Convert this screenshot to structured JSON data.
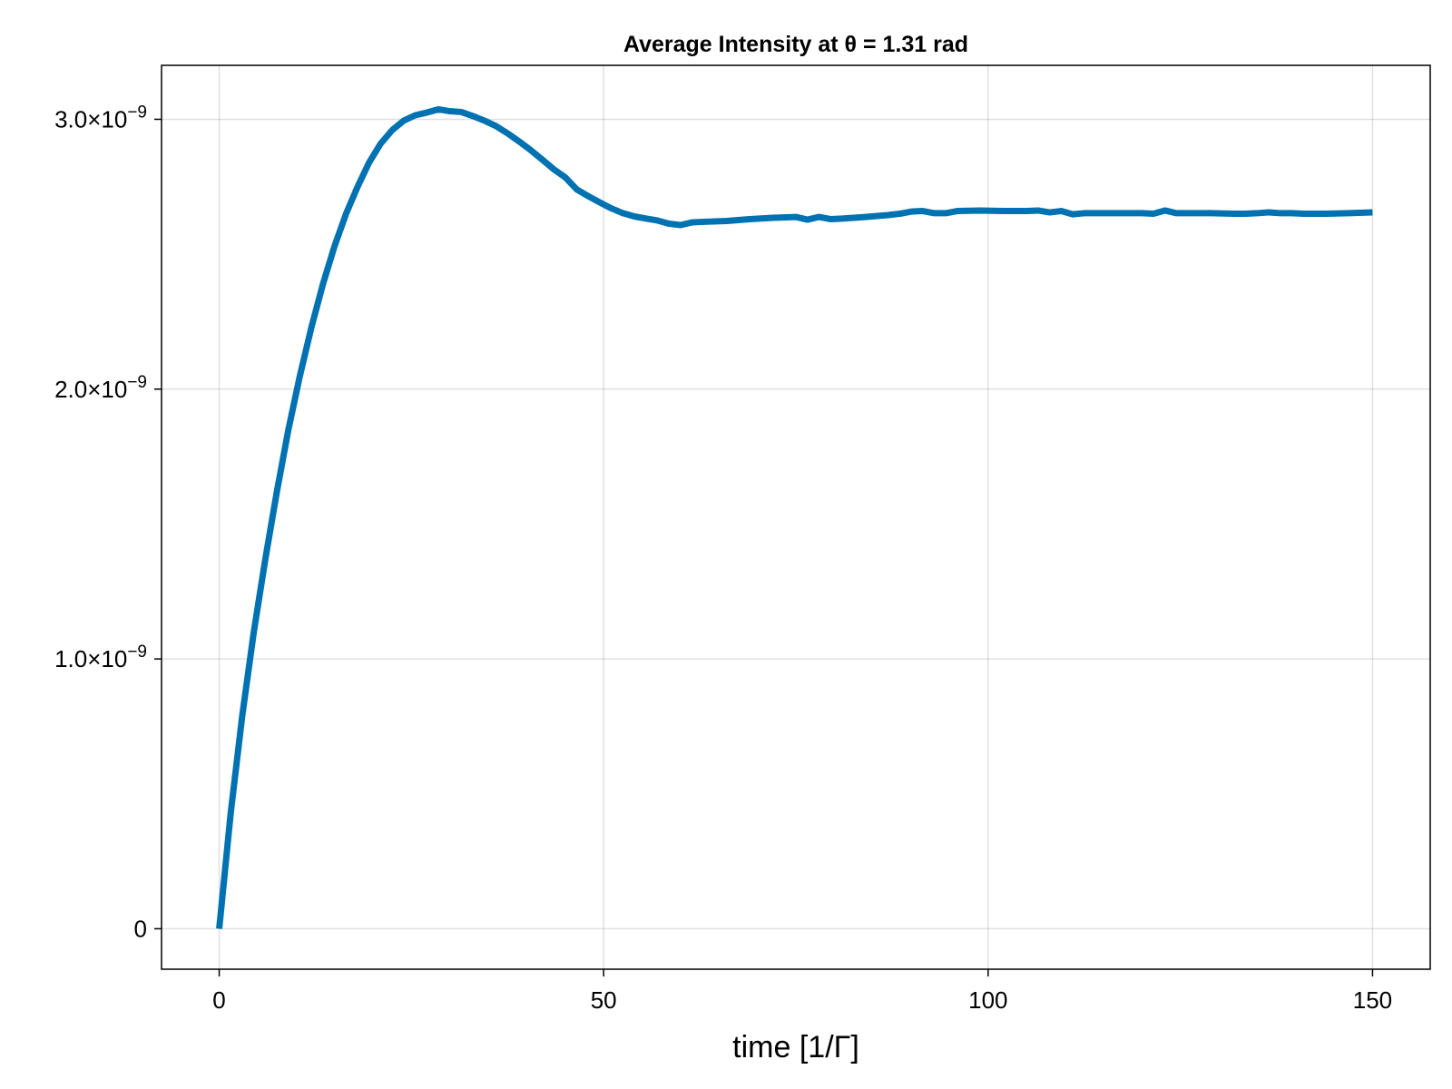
{
  "chart_data": {
    "type": "line",
    "title": "Average Intensity at θ = 1.31 rad",
    "xlabel": "time [1/Γ]",
    "ylabel": "",
    "xlim": [
      -7.5,
      157.5
    ],
    "ylim": [
      -1.5e-10,
      3.2e-09
    ],
    "xticks": [
      0,
      50,
      100,
      150
    ],
    "xtick_labels": [
      "0",
      "50",
      "100",
      "150"
    ],
    "yticks": [
      0,
      1e-09,
      2e-09,
      3e-09
    ],
    "ytick_labels": [
      {
        "mantissa": "0",
        "exponent": ""
      },
      {
        "mantissa": "1.0×10",
        "exponent": "−9"
      },
      {
        "mantissa": "2.0×10",
        "exponent": "−9"
      },
      {
        "mantissa": "3.0×10",
        "exponent": "−9"
      }
    ],
    "grid": true,
    "line_color": "#0072b2",
    "series": [
      {
        "x": [
          0,
          1.5,
          3,
          4.5,
          6,
          7.5,
          9,
          10.5,
          12,
          13.5,
          15,
          16.5,
          18,
          19.5,
          21,
          22.5,
          24,
          25.5,
          27,
          28.5,
          30,
          31.5,
          33,
          34.5,
          36,
          37.5,
          39,
          40.5,
          42,
          43.5,
          45,
          46.5,
          48,
          49.5,
          51,
          52.5,
          54,
          55.5,
          57,
          58.5,
          60,
          61.5,
          63,
          66,
          69,
          72,
          75,
          76.5,
          78,
          79.5,
          81,
          84,
          87,
          88.5,
          90,
          91.5,
          93,
          94.5,
          96,
          99,
          102,
          105,
          106.5,
          108,
          109.5,
          111,
          112.5,
          114,
          117,
          120,
          121.5,
          123,
          124.5,
          126,
          129,
          132,
          133.5,
          135,
          136.5,
          138,
          139.5,
          141,
          142.5,
          144,
          147,
          150
        ],
        "y": [
          0,
          4.3e-10,
          7.9e-10,
          1.1e-09,
          1.37e-09,
          1.62e-09,
          1.85e-09,
          2.05e-09,
          2.23e-09,
          2.39e-09,
          2.53e-09,
          2.65e-09,
          2.75e-09,
          2.84e-09,
          2.91e-09,
          2.96e-09,
          2.995e-09,
          3.015e-09,
          3.025e-09,
          3.037e-09,
          3.03e-09,
          3.027e-09,
          3.012e-09,
          2.995e-09,
          2.975e-09,
          2.948e-09,
          2.918e-09,
          2.886e-09,
          2.851e-09,
          2.815e-09,
          2.785e-09,
          2.74e-09,
          2.715e-09,
          2.692e-09,
          2.67e-09,
          2.652e-09,
          2.64e-09,
          2.632e-09,
          2.625e-09,
          2.613e-09,
          2.608e-09,
          2.618e-09,
          2.62e-09,
          2.623e-09,
          2.63e-09,
          2.635e-09,
          2.638e-09,
          2.628e-09,
          2.638e-09,
          2.63e-09,
          2.632e-09,
          2.638e-09,
          2.645e-09,
          2.65e-09,
          2.658e-09,
          2.66e-09,
          2.652e-09,
          2.652e-09,
          2.66e-09,
          2.662e-09,
          2.66e-09,
          2.66e-09,
          2.662e-09,
          2.655e-09,
          2.66e-09,
          2.648e-09,
          2.652e-09,
          2.652e-09,
          2.652e-09,
          2.652e-09,
          2.65e-09,
          2.662e-09,
          2.652e-09,
          2.652e-09,
          2.652e-09,
          2.65e-09,
          2.65e-09,
          2.652e-09,
          2.655e-09,
          2.652e-09,
          2.652e-09,
          2.65e-09,
          2.65e-09,
          2.65e-09,
          2.652e-09,
          2.655e-09
        ]
      }
    ]
  }
}
